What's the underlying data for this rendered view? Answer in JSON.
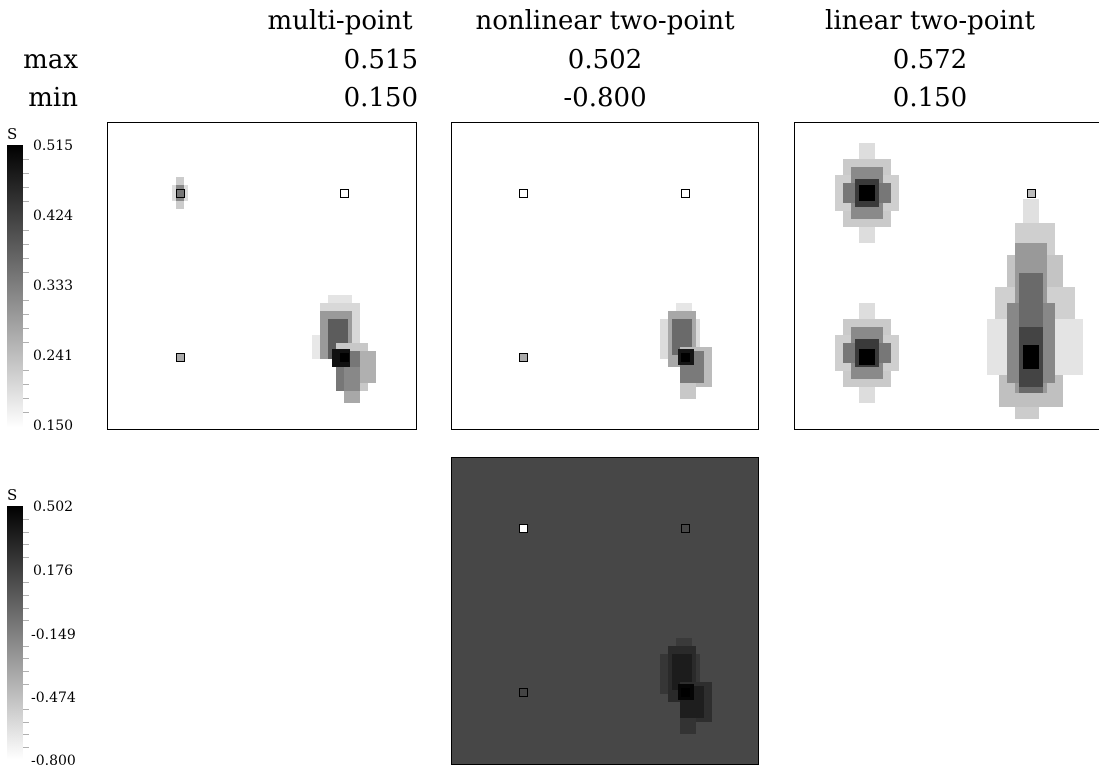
{
  "columns": [
    "multi-point",
    "nonlinear two-point",
    "linear two-point"
  ],
  "rows": [
    {
      "label": "max",
      "values": [
        "0.515",
        "0.502",
        "0.572"
      ]
    },
    {
      "label": "min",
      "values": [
        "0.150",
        "-0.800",
        "0.150"
      ]
    }
  ],
  "colorbars": [
    {
      "variable": "S",
      "ticks": [
        "0.515",
        "0.424",
        "0.333",
        "0.241",
        "0.150"
      ]
    },
    {
      "variable": "S",
      "ticks": [
        "0.502",
        "0.176",
        "-0.149",
        "-0.474",
        "-0.800"
      ]
    }
  ],
  "colors": {
    "background": "#ffffff",
    "dark_field": "#474747",
    "max": "#000000",
    "min": "#ffffff"
  }
}
